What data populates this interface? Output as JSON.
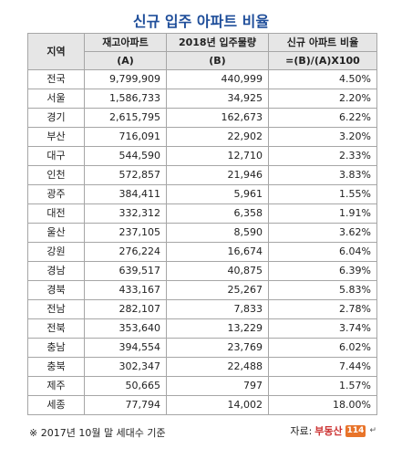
{
  "title": "신규 입주 아파트 비율",
  "headers": {
    "region": "지역",
    "stock_line1": "재고아파트",
    "stock_line2": "(A)",
    "supply_line1": "2018년 입주물량",
    "supply_line2": "(B)",
    "ratio_line1": "신규 아파트 비율",
    "ratio_line2": "=(B)/(A)X100"
  },
  "rows": [
    {
      "region": "전국",
      "stock": "9,799,909",
      "supply": "440,999",
      "ratio": "4.50%"
    },
    {
      "region": "서울",
      "stock": "1,586,733",
      "supply": "34,925",
      "ratio": "2.20%"
    },
    {
      "region": "경기",
      "stock": "2,615,795",
      "supply": "162,673",
      "ratio": "6.22%"
    },
    {
      "region": "부산",
      "stock": "716,091",
      "supply": "22,902",
      "ratio": "3.20%"
    },
    {
      "region": "대구",
      "stock": "544,590",
      "supply": "12,710",
      "ratio": "2.33%"
    },
    {
      "region": "인천",
      "stock": "572,857",
      "supply": "21,946",
      "ratio": "3.83%"
    },
    {
      "region": "광주",
      "stock": "384,411",
      "supply": "5,961",
      "ratio": "1.55%"
    },
    {
      "region": "대전",
      "stock": "332,312",
      "supply": "6,358",
      "ratio": "1.91%"
    },
    {
      "region": "울산",
      "stock": "237,105",
      "supply": "8,590",
      "ratio": "3.62%"
    },
    {
      "region": "강원",
      "stock": "276,224",
      "supply": "16,674",
      "ratio": "6.04%"
    },
    {
      "region": "경남",
      "stock": "639,517",
      "supply": "40,875",
      "ratio": "6.39%"
    },
    {
      "region": "경북",
      "stock": "433,167",
      "supply": "25,267",
      "ratio": "5.83%"
    },
    {
      "region": "전남",
      "stock": "282,107",
      "supply": "7,833",
      "ratio": "2.78%"
    },
    {
      "region": "전북",
      "stock": "353,640",
      "supply": "13,229",
      "ratio": "3.74%"
    },
    {
      "region": "충남",
      "stock": "394,554",
      "supply": "23,769",
      "ratio": "6.02%"
    },
    {
      "region": "충북",
      "stock": "302,347",
      "supply": "22,488",
      "ratio": "7.44%"
    },
    {
      "region": "제주",
      "stock": "50,665",
      "supply": "797",
      "ratio": "1.57%"
    },
    {
      "region": "세종",
      "stock": "77,794",
      "supply": "14,002",
      "ratio": "18.00%"
    }
  ],
  "footnote": "※ 2017년 10월 말 세대수 기준",
  "source_label": "자료:",
  "source_logo_text": "부동산",
  "source_logo_box": "114",
  "return_mark": "↵"
}
